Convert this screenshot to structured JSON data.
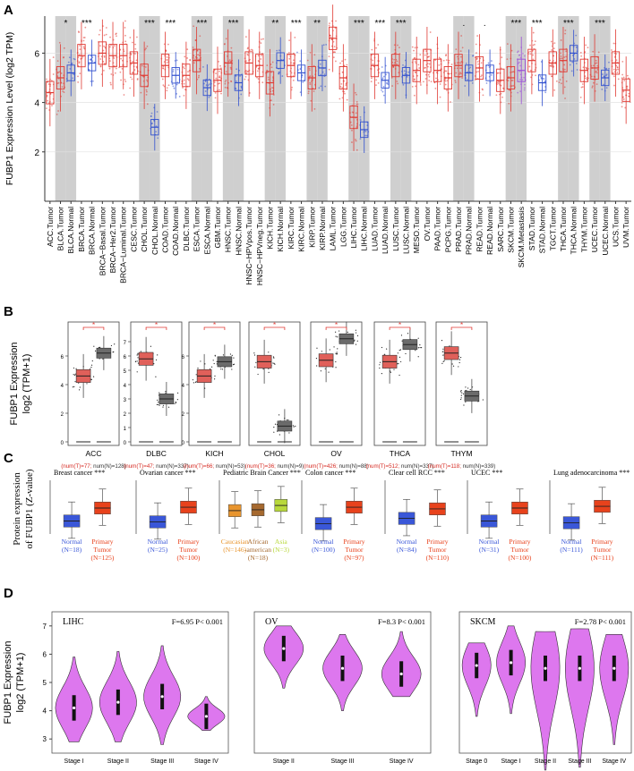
{
  "panel_labels": [
    "A",
    "B",
    "C",
    "D"
  ],
  "chart_data": [
    {
      "id": "A",
      "type": "box",
      "title": "",
      "ylabel": "FUBP1 Expression Level (log2 TPM)",
      "ylim": [
        0,
        7.5
      ],
      "yticks": [
        2,
        4,
        6
      ],
      "categories": [
        "ACC.Tumor",
        "BLCA.Tumor",
        "BLCA.Normal",
        "BRCA.Tumor",
        "BRCA.Normal",
        "BRCA−Basal.Tumor",
        "BRCA−Her2.Tumor",
        "BRCA−Luminal.Tumor",
        "CESC.Tumor",
        "CHOL.Tumor",
        "CHOL.Normal",
        "COAD.Tumor",
        "COAD.Normal",
        "DLBC.Tumor",
        "ESCA.Tumor",
        "ESCA.Normal",
        "GBM.Tumor",
        "HNSC.Tumor",
        "HNSC.Normal",
        "HNSC−HPVpos.Tumor",
        "HNSC−HPVneg.Tumor",
        "KICH.Tumor",
        "KICH.Normal",
        "KIRC.Tumor",
        "KIRC.Normal",
        "KIRP.Tumor",
        "KIRP.Normal",
        "LAML.Tumor",
        "LGG.Tumor",
        "LIHC.Tumor",
        "LIHC.Normal",
        "LUAD.Tumor",
        "LUAD.Normal",
        "LUSC.Tumor",
        "LUSC.Normal",
        "MESO.Tumor",
        "OV.Tumor",
        "PAAD.Tumor",
        "PCPG.Tumor",
        "PRAD.Tumor",
        "PRAD.Normal",
        "READ.Tumor",
        "READ.Normal",
        "SARC.Tumor",
        "SKCM.Tumor",
        "SKCM.Metastasis",
        "STAD.Tumor",
        "STAD.Normal",
        "TGCT.Tumor",
        "THCA.Tumor",
        "THCA.Normal",
        "THYM.Tumor",
        "UCEC.Tumor",
        "UCEC.Normal",
        "UCS.Tumor",
        "UVM.Tumor"
      ],
      "kind": [
        "T",
        "T",
        "N",
        "T",
        "N",
        "T",
        "T",
        "T",
        "T",
        "T",
        "N",
        "T",
        "N",
        "T",
        "T",
        "N",
        "T",
        "T",
        "N",
        "T",
        "T",
        "T",
        "N",
        "T",
        "N",
        "T",
        "N",
        "T",
        "T",
        "T",
        "N",
        "T",
        "N",
        "T",
        "N",
        "T",
        "T",
        "T",
        "T",
        "T",
        "N",
        "T",
        "N",
        "T",
        "T",
        "M",
        "T",
        "N",
        "T",
        "T",
        "N",
        "T",
        "T",
        "N",
        "T",
        "T"
      ],
      "medians": [
        4.4,
        5.0,
        5.2,
        5.9,
        5.6,
        6.0,
        5.9,
        5.9,
        5.6,
        5.1,
        3.0,
        5.5,
        5.1,
        5.1,
        5.7,
        4.6,
        4.9,
        5.6,
        4.8,
        5.6,
        5.5,
        4.8,
        5.7,
        5.5,
        5.2,
        5.0,
        5.4,
        6.6,
        5.0,
        3.4,
        2.9,
        5.5,
        4.9,
        5.5,
        5.1,
        5.3,
        5.7,
        5.3,
        5.0,
        5.5,
        5.2,
        5.4,
        5.2,
        4.9,
        5.0,
        5.3,
        5.7,
        4.8,
        5.6,
        5.7,
        6.0,
        5.3,
        5.4,
        5.0,
        5.6,
        4.5
      ],
      "shading": [
        0,
        1,
        1,
        0,
        0,
        0,
        0,
        0,
        0,
        1,
        1,
        0,
        0,
        0,
        1,
        1,
        0,
        1,
        1,
        0,
        0,
        1,
        1,
        0,
        0,
        1,
        1,
        0,
        0,
        1,
        1,
        0,
        0,
        1,
        1,
        0,
        0,
        0,
        0,
        1,
        1,
        0,
        0,
        0,
        1,
        1,
        0,
        0,
        0,
        1,
        1,
        0,
        1,
        1,
        0,
        0
      ],
      "significance": [
        {
          "pair": [
            1,
            2
          ],
          "label": "*"
        },
        {
          "pair": [
            3,
            4
          ],
          "label": "***"
        },
        {
          "pair": [
            9,
            10
          ],
          "label": "***"
        },
        {
          "pair": [
            11,
            12
          ],
          "label": "***"
        },
        {
          "pair": [
            14,
            15
          ],
          "label": "***"
        },
        {
          "pair": [
            17,
            18
          ],
          "label": "***"
        },
        {
          "pair": [
            21,
            22
          ],
          "label": "**"
        },
        {
          "pair": [
            23,
            24
          ],
          "label": "***"
        },
        {
          "pair": [
            25,
            26
          ],
          "label": "**"
        },
        {
          "pair": [
            29,
            30
          ],
          "label": "***"
        },
        {
          "pair": [
            31,
            32
          ],
          "label": "***"
        },
        {
          "pair": [
            33,
            34
          ],
          "label": "***"
        },
        {
          "pair": [
            39,
            40
          ],
          "label": "."
        },
        {
          "pair": [
            41,
            42
          ],
          "label": "."
        },
        {
          "pair": [
            44,
            45
          ],
          "label": "***"
        },
        {
          "pair": [
            46,
            47
          ],
          "label": "***"
        },
        {
          "pair": [
            49,
            50
          ],
          "label": "***"
        },
        {
          "pair": [
            52,
            53
          ],
          "label": "***"
        }
      ],
      "colors": {
        "tumor": "#e03a33",
        "normal": "#3150cf",
        "metastasis": "#9b4dd8",
        "shade": "#cfcfcf"
      }
    },
    {
      "id": "B",
      "type": "box",
      "ylabel_line1": "FUBP1 Expression",
      "ylabel_line2": "log2 (TPM+1)",
      "ylim": [
        0,
        8
      ],
      "yticks": [
        0,
        1,
        2,
        3,
        4,
        5,
        6,
        7,
        8
      ],
      "panels": [
        {
          "name": "ACC",
          "tumor_median": 4.6,
          "normal_median": 6.2,
          "tumor_n": "num(T)=77",
          "normal_n": "num(N)=128",
          "normal_empty": false,
          "ticks": [
            0,
            2,
            4,
            6
          ]
        },
        {
          "name": "DLBC",
          "tumor_median": 5.8,
          "normal_median": 3.0,
          "tumor_n": "num(T)=47",
          "normal_n": "num(N)=337",
          "normal_empty": false,
          "ticks": [
            0,
            1,
            2,
            3,
            4,
            5,
            6,
            7
          ]
        },
        {
          "name": "KICH",
          "tumor_median": 4.6,
          "normal_median": 5.6,
          "tumor_n": "num(T)=66",
          "normal_n": "num(N)=53",
          "normal_empty": false,
          "ticks": [
            0,
            2,
            4,
            6
          ]
        },
        {
          "name": "CHOL",
          "tumor_median": 5.6,
          "normal_median": 1.1,
          "tumor_n": "num(T)=36",
          "normal_n": "num(N)=9",
          "normal_empty": false,
          "ticks": []
        },
        {
          "name": "OV",
          "tumor_median": 5.7,
          "normal_median": 7.2,
          "tumor_n": "num(T)=426",
          "normal_n": "num(N)=88",
          "normal_empty": false,
          "ticks": []
        },
        {
          "name": "THCA",
          "tumor_median": 5.6,
          "normal_median": 6.8,
          "tumor_n": "num(T)=512",
          "normal_n": "num(N)=337",
          "normal_empty": false,
          "ticks": []
        },
        {
          "name": "THYM",
          "tumor_median": 6.2,
          "normal_median": 3.2,
          "tumor_n": "num(T)=118",
          "normal_n": "num(N)=339",
          "normal_empty": false,
          "ticks": []
        }
      ],
      "colors": {
        "tumor": "#e0605a",
        "normal": "#6b6b6b",
        "sig": "#e03a33",
        "n_tumor": "#d62a22"
      }
    },
    {
      "id": "C",
      "type": "box",
      "ylabel_line1": "Protein expression",
      "ylabel_line2": "of FUBP1 (Z-value)",
      "ylim": [
        -3,
        3
      ],
      "panels": [
        {
          "title": "Breast cancer ***",
          "groups": [
            {
              "label1": "Normal",
              "label2": "(N=18)",
              "median": -1.5,
              "color": "#3a57d8"
            },
            {
              "label1": "Primary",
              "label2": "Tumor",
              "label3": "(N=125)",
              "median": 0.0,
              "color": "#e8421c"
            }
          ]
        },
        {
          "title": "Ovarian cancer ***",
          "groups": [
            {
              "label1": "Normal",
              "label2": "(N=25)",
              "median": -1.6,
              "color": "#3a57d8"
            },
            {
              "label1": "Primary",
              "label2": "Tumor",
              "label3": "(N=100)",
              "median": 0.1,
              "color": "#e8421c"
            }
          ]
        },
        {
          "title": "Pediatric Brain Cancer ***",
          "groups": [
            {
              "label1": "Caucasian",
              "label2": "(N=146)",
              "median": -0.3,
              "color": "#e8952e"
            },
            {
              "label1": "African",
              "label2": "-american",
              "label3": "(N=18)",
              "median": -0.2,
              "color": "#a6692f"
            },
            {
              "label1": "Asia",
              "label2": "(N=3)",
              "median": 0.3,
              "color": "#b8d83b"
            }
          ]
        },
        {
          "title": "Colon cancer ***",
          "groups": [
            {
              "label1": "Normal",
              "label2": "(N=100)",
              "median": -1.8,
              "color": "#3a57d8"
            },
            {
              "label1": "Primary",
              "label2": "Tumor",
              "label3": "(N=97)",
              "median": 0.1,
              "color": "#e8421c"
            }
          ]
        },
        {
          "title": "Clear cell RCC ***",
          "groups": [
            {
              "label1": "Normal",
              "label2": "(N=84)",
              "median": -1.2,
              "color": "#3a57d8"
            },
            {
              "label1": "Primary",
              "label2": "Tumor",
              "label3": "(N=110)",
              "median": -0.1,
              "color": "#e8421c"
            }
          ]
        },
        {
          "title": "UCEC ***",
          "groups": [
            {
              "label1": "Normal",
              "label2": "(N=31)",
              "median": -1.5,
              "color": "#3a57d8"
            },
            {
              "label1": "Primary",
              "label2": "Tumor",
              "label3": "(N=100)",
              "median": 0.0,
              "color": "#e8421c"
            }
          ]
        },
        {
          "title": "Lung adenocarcinoma ***",
          "groups": [
            {
              "label1": "Normal",
              "label2": "(N=111)",
              "median": -1.7,
              "color": "#3a57d8"
            },
            {
              "label1": "Primary",
              "label2": "Tumor",
              "label3": "(N=111)",
              "median": 0.2,
              "color": "#e8421c"
            }
          ]
        }
      ]
    },
    {
      "id": "D",
      "type": "violin",
      "ylabel_line1": "FUBP1 Expression",
      "ylabel_line2": "log2 (TPM+1)",
      "ylim": [
        2.5,
        7.5
      ],
      "yticks": [
        3,
        4,
        5,
        6,
        7
      ],
      "color": "#dd77ee",
      "panels": [
        {
          "name": "LIHC",
          "stat": "F=6.95  P< 0.001",
          "stages": [
            "Stage I",
            "Stage II",
            "Stage III",
            "Stage IV"
          ],
          "medians": [
            4.1,
            4.3,
            4.5,
            3.8
          ],
          "ranges": [
            [
              2.9,
              5.9
            ],
            [
              2.9,
              6.1
            ],
            [
              2.8,
              6.3
            ],
            [
              3.3,
              4.5
            ]
          ]
        },
        {
          "name": "OV",
          "stat": "F=8.3  P< 0.001",
          "stages": [
            "Stage II",
            "Stage III",
            "Stage IV"
          ],
          "medians": [
            6.2,
            5.5,
            5.3
          ],
          "ranges": [
            [
              4.8,
              7.0
            ],
            [
              4.0,
              6.7
            ],
            [
              4.5,
              6.8
            ]
          ]
        },
        {
          "name": "SKCM",
          "stat": "F=2.78  P< 0.001",
          "stages": [
            "Stage 0",
            "Stage I",
            "Stage II",
            "Stage III",
            "Stage IV"
          ],
          "medians": [
            5.6,
            5.7,
            5.5,
            5.5,
            5.5
          ],
          "ranges": [
            [
              3.8,
              6.4
            ],
            [
              3.9,
              7.0
            ],
            [
              1.9,
              6.8
            ],
            [
              2.0,
              6.9
            ],
            [
              2.8,
              6.7
            ]
          ]
        }
      ]
    }
  ]
}
